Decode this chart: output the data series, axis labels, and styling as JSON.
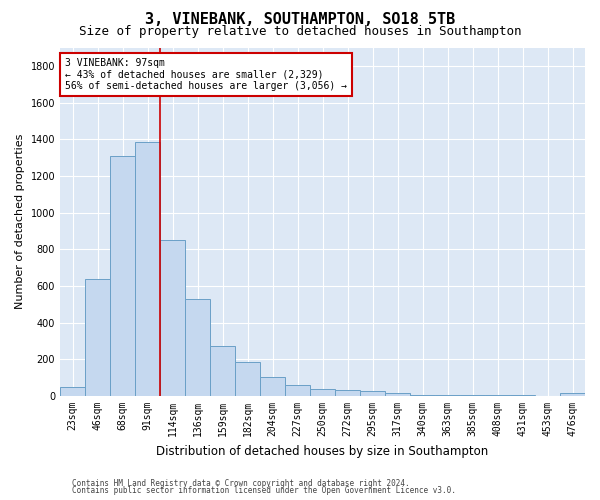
{
  "title": "3, VINEBANK, SOUTHAMPTON, SO18 5TB",
  "subtitle": "Size of property relative to detached houses in Southampton",
  "xlabel": "Distribution of detached houses by size in Southampton",
  "ylabel": "Number of detached properties",
  "categories": [
    "23sqm",
    "46sqm",
    "68sqm",
    "91sqm",
    "114sqm",
    "136sqm",
    "159sqm",
    "182sqm",
    "204sqm",
    "227sqm",
    "250sqm",
    "272sqm",
    "295sqm",
    "317sqm",
    "340sqm",
    "363sqm",
    "385sqm",
    "408sqm",
    "431sqm",
    "453sqm",
    "476sqm"
  ],
  "values": [
    50,
    640,
    1310,
    1385,
    848,
    530,
    275,
    185,
    103,
    60,
    37,
    35,
    28,
    15,
    5,
    5,
    5,
    5,
    5,
    3,
    15
  ],
  "bar_color": "#c5d8ef",
  "bar_edge_color": "#6aa0c7",
  "background_color": "#ffffff",
  "plot_bg_color": "#dde8f5",
  "grid_color": "#ffffff",
  "vline_x_index": 3.5,
  "vline_color": "#cc0000",
  "annotation_box_text": "3 VINEBANK: 97sqm\n← 43% of detached houses are smaller (2,329)\n56% of semi-detached houses are larger (3,056) →",
  "annotation_box_color": "#cc0000",
  "ylim": [
    0,
    1900
  ],
  "yticks": [
    0,
    200,
    400,
    600,
    800,
    1000,
    1200,
    1400,
    1600,
    1800
  ],
  "footer_line1": "Contains HM Land Registry data © Crown copyright and database right 2024.",
  "footer_line2": "Contains public sector information licensed under the Open Government Licence v3.0.",
  "title_fontsize": 11,
  "subtitle_fontsize": 9,
  "xlabel_fontsize": 8.5,
  "ylabel_fontsize": 8,
  "tick_fontsize": 7,
  "annotation_fontsize": 7,
  "footer_fontsize": 5.5
}
